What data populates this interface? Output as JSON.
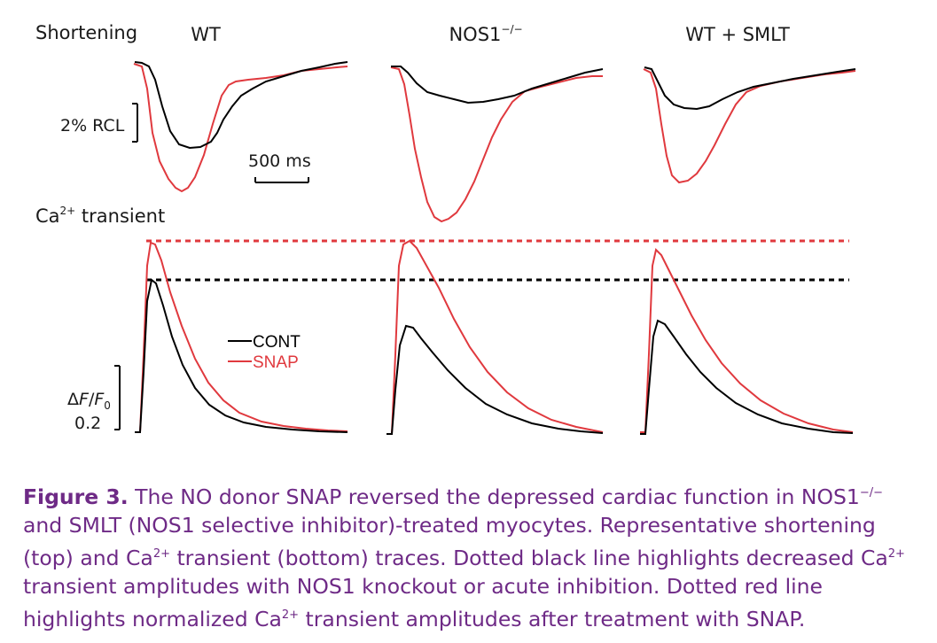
{
  "figure": {
    "row_labels": {
      "shortening": "Shortening",
      "ca_prefix": "Ca",
      "ca_sup": "2+",
      "ca_suffix": " transient"
    },
    "panels": [
      {
        "base": "WT",
        "sup": ""
      },
      {
        "base": "NOS1",
        "sup": "−/−"
      },
      {
        "base": "WT + SMLT",
        "sup": ""
      }
    ],
    "scale_bars": {
      "rcl": "2% RCL",
      "time": "500 ms",
      "df_delta": "Δ",
      "df_f": "F",
      "df_slash": "/",
      "df_f0": "F",
      "df_f0_sub": "0",
      "df_value": "0.2"
    },
    "legend": [
      {
        "label": "CONT",
        "color": "#000000"
      },
      {
        "label": "SNAP",
        "color": "#e0393e"
      }
    ],
    "colors": {
      "cont": "#000000",
      "snap": "#e0393e"
    }
  },
  "caption": {
    "label": "Figure 3.",
    "t1": " The NO donor SNAP reversed the depressed cardiac function in NOS1",
    "sup1": "−/−",
    "t2": " and SMLT (NOS1 selective inhibitor)-treated myocytes. Representative shortening (top) and Ca",
    "sup2": "2+",
    "t3": " transient (bottom) traces. Dotted black line highlights decreased Ca",
    "sup3": "2+",
    "t4": " transient amplitudes with NOS1 knockout or acute inhibition. Dotted red line highlights normalized Ca",
    "sup4": "2+",
    "t5": " transient amplitudes after treatment with SNAP."
  }
}
